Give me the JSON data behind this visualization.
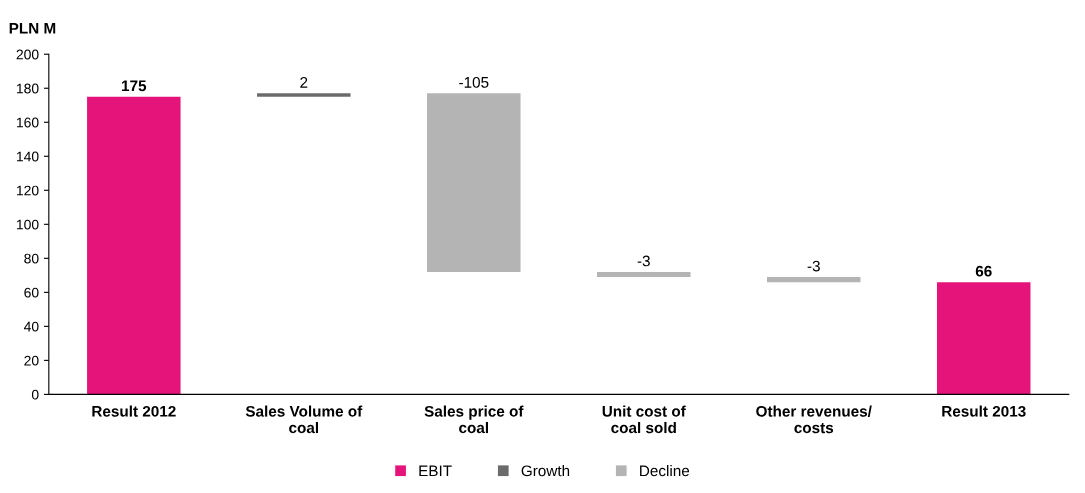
{
  "chart_data": {
    "type": "bar",
    "ylabel": "PLN M",
    "categories": [
      "Result 2012",
      "Sales Volume of\ncoal",
      "Sales price of\ncoal",
      "Unit cost of\ncoal sold",
      "Other revenues/\ncosts",
      "Result 2013"
    ],
    "series": [
      {
        "name": "EBIT",
        "color": "#e5147a",
        "values": [
          175,
          null,
          null,
          null,
          null,
          66
        ],
        "base": [
          0,
          null,
          null,
          null,
          null,
          0
        ]
      },
      {
        "name": "Growth",
        "color": "#6b6b6b",
        "values": [
          null,
          2,
          null,
          null,
          null,
          null
        ],
        "base": [
          null,
          175,
          null,
          null,
          null,
          null
        ]
      },
      {
        "name": "Decline",
        "color": "#b4b4b4",
        "values": [
          null,
          null,
          -105,
          -3,
          -3,
          null
        ],
        "base": [
          null,
          null,
          177,
          72,
          69,
          null
        ]
      }
    ],
    "ylim": [
      0,
      200
    ],
    "yticks": [
      0,
      20,
      40,
      60,
      80,
      100,
      120,
      140,
      160,
      180,
      200
    ],
    "data_labels": true,
    "grid": false,
    "legend": "bottom"
  }
}
